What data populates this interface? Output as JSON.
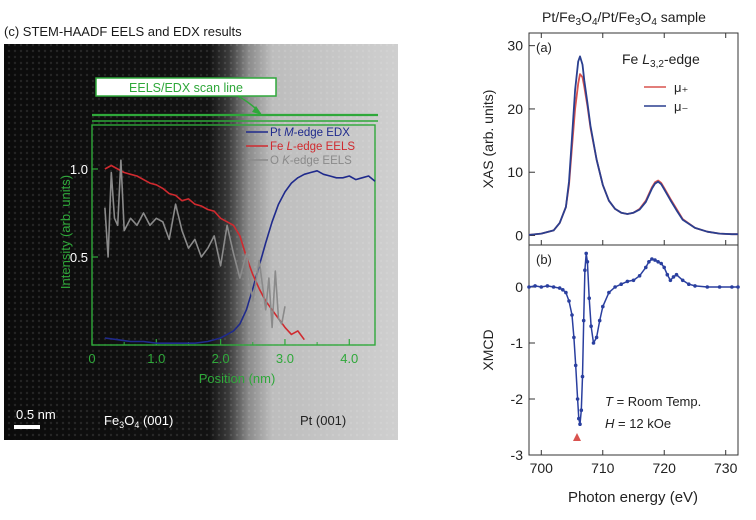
{
  "left_panel": {
    "caption": "(c) STEM-HAADF EELS and EDX results",
    "scan_label": "EELS/EDX scan line",
    "scale_bar": "0.5 nm",
    "region_left_base": "Fe",
    "region_left_sub1": "3",
    "region_left_mid": "O",
    "region_left_sub2": "4",
    "region_left_tail": " (001)",
    "region_right": "Pt (001)"
  },
  "right_panel": {
    "title_parts": [
      "Pt/Fe",
      "3",
      "O",
      "4",
      "/Pt/Fe",
      "3",
      "O",
      "4",
      " sample"
    ],
    "panel_a": "(a)",
    "panel_b": "(b)",
    "edge_label_pre": "Fe ",
    "edge_label_L": "L",
    "edge_label_sub": "3,2",
    "edge_label_post": "-edge",
    "legend_mu_plus": "μ₊",
    "legend_mu_minus": "μ₋",
    "temp_T": "T",
    "temp_rest": " = Room Temp.",
    "field_H": "H",
    "field_rest": " = 12 kOe"
  },
  "colors": {
    "green": "#2fa83a",
    "pt_blue": "#1f2a8c",
    "fe_red": "#d02a2f",
    "o_gray": "#8a8a8a",
    "xas_red": "#d9534f",
    "xas_blue": "#2a3f8f",
    "xmcd_blue": "#2a3f9f",
    "marker_red": "#d9534f"
  },
  "chart_data": [
    {
      "type": "line",
      "xlabel": "Position (nm)",
      "ylabel": "Intensity (arb. units)",
      "xlim": [
        0,
        4.4
      ],
      "ylim": [
        0,
        1.25
      ],
      "xticks": [
        "0",
        "1.0",
        "2.0",
        "3.0",
        "4.0"
      ],
      "xtick_values": [
        0,
        1,
        2,
        3,
        4
      ],
      "yticks": [
        "0.5",
        "1.0"
      ],
      "ytick_values": [
        0.5,
        1.0
      ],
      "series": [
        {
          "name": "Pt M-edge EDX",
          "name_parts": [
            "Pt ",
            "M",
            "-edge EDX"
          ],
          "color_key": "pt_blue",
          "x": [
            0.2,
            0.4,
            0.6,
            0.8,
            1.0,
            1.2,
            1.4,
            1.6,
            1.8,
            2.0,
            2.2,
            2.3,
            2.4,
            2.5,
            2.6,
            2.7,
            2.8,
            2.9,
            3.0,
            3.1,
            3.2,
            3.3,
            3.4,
            3.5,
            3.6,
            3.7,
            3.8,
            3.9,
            4.0,
            4.1,
            4.2,
            4.3,
            4.4
          ],
          "values": [
            0.04,
            0.03,
            0.02,
            0.02,
            0.01,
            0.01,
            0.01,
            0.01,
            0.02,
            0.04,
            0.08,
            0.12,
            0.2,
            0.32,
            0.45,
            0.58,
            0.7,
            0.8,
            0.87,
            0.92,
            0.95,
            0.97,
            0.98,
            0.99,
            0.97,
            0.96,
            0.95,
            0.95,
            0.96,
            0.94,
            0.95,
            0.96,
            0.93
          ]
        },
        {
          "name": "Fe L-edge EELS",
          "name_parts": [
            "Fe ",
            "L",
            "-edge EELS"
          ],
          "color_key": "fe_red",
          "x": [
            0.2,
            0.3,
            0.4,
            0.5,
            0.6,
            0.7,
            0.8,
            0.9,
            1.0,
            1.1,
            1.2,
            1.3,
            1.4,
            1.5,
            1.6,
            1.7,
            1.8,
            1.9,
            2.0,
            2.1,
            2.2,
            2.3,
            2.4,
            2.5,
            2.6,
            2.7,
            2.8,
            2.9,
            3.0,
            3.1,
            3.2,
            3.3
          ],
          "values": [
            1.0,
            1.02,
            1.0,
            0.98,
            0.97,
            0.96,
            0.94,
            0.92,
            0.91,
            0.89,
            0.86,
            0.85,
            0.82,
            0.83,
            0.8,
            0.79,
            0.77,
            0.76,
            0.72,
            0.7,
            0.68,
            0.62,
            0.5,
            0.4,
            0.32,
            0.25,
            0.2,
            0.15,
            0.1,
            0.06,
            0.08,
            0.03
          ]
        },
        {
          "name": "O K-edge EELS",
          "name_parts": [
            "O ",
            "K",
            "-edge EELS"
          ],
          "color_key": "o_gray",
          "x": [
            0.2,
            0.25,
            0.3,
            0.35,
            0.4,
            0.45,
            0.5,
            0.6,
            0.7,
            0.8,
            0.9,
            1.0,
            1.1,
            1.2,
            1.3,
            1.4,
            1.5,
            1.6,
            1.7,
            1.8,
            1.9,
            2.0,
            2.1,
            2.2,
            2.3,
            2.4,
            2.5,
            2.6,
            2.7,
            2.75,
            2.8,
            2.85,
            2.9,
            2.95,
            3.0
          ],
          "values": [
            0.78,
            0.5,
            0.98,
            0.72,
            0.68,
            1.05,
            0.65,
            0.72,
            0.68,
            0.75,
            0.68,
            0.72,
            0.7,
            0.6,
            0.8,
            0.65,
            0.55,
            0.6,
            0.5,
            0.55,
            0.62,
            0.45,
            0.68,
            0.52,
            0.38,
            0.52,
            0.25,
            0.48,
            0.2,
            0.38,
            0.1,
            0.42,
            0.15,
            0.12,
            0.22
          ]
        }
      ]
    },
    {
      "type": "line",
      "xlabel": "",
      "ylabel": "XAS (arb. units)",
      "xlim": [
        698,
        732
      ],
      "ylim": [
        -1.5,
        32
      ],
      "yticks": [
        "0",
        "10",
        "20",
        "30"
      ],
      "ytick_values": [
        0,
        10,
        20,
        30
      ],
      "series": [
        {
          "name": "μ₊",
          "color_key": "xas_red",
          "x": [
            698,
            700,
            702,
            703,
            704,
            704.5,
            705,
            705.5,
            706,
            706.3,
            706.7,
            707,
            707.5,
            708,
            709,
            710,
            711,
            712,
            713,
            714,
            715,
            716,
            717,
            718,
            718.5,
            719,
            719.5,
            720,
            721,
            722,
            723,
            725,
            727,
            729,
            731,
            732
          ],
          "values": [
            0.1,
            0.3,
            0.8,
            2.0,
            4.5,
            8,
            14,
            20,
            24,
            25.5,
            25,
            23.5,
            20.5,
            17,
            12,
            8,
            5.5,
            4.2,
            3.6,
            3.4,
            3.6,
            4.2,
            5.5,
            7.6,
            8.4,
            8.7,
            8.3,
            7.5,
            5.8,
            4.2,
            2.6,
            1.2,
            0.6,
            0.3,
            0.2,
            0.2
          ]
        },
        {
          "name": "μ₋",
          "color_key": "xas_blue",
          "x": [
            698,
            700,
            702,
            703,
            704,
            704.5,
            705,
            705.5,
            706,
            706.3,
            706.7,
            707,
            707.5,
            708,
            709,
            710,
            711,
            712,
            713,
            714,
            715,
            716,
            717,
            718,
            718.5,
            719,
            719.5,
            720,
            721,
            722,
            723,
            725,
            727,
            729,
            731,
            732
          ],
          "values": [
            0.1,
            0.3,
            0.8,
            2.0,
            4.5,
            8.5,
            15.5,
            23,
            27.5,
            28.3,
            27,
            24.5,
            21,
            17.3,
            12,
            8,
            5.5,
            4.2,
            3.6,
            3.4,
            3.6,
            4.1,
            5.3,
            7.4,
            8.2,
            8.5,
            8.1,
            7.3,
            5.6,
            4.0,
            2.5,
            1.2,
            0.6,
            0.3,
            0.2,
            0.2
          ]
        }
      ]
    },
    {
      "type": "line",
      "xlabel": "Photon energy (eV)",
      "ylabel": "XMCD",
      "xlim": [
        698,
        732
      ],
      "ylim": [
        -3,
        0.75
      ],
      "xticks": [
        "700",
        "710",
        "720",
        "730"
      ],
      "xtick_values": [
        700,
        710,
        720,
        730
      ],
      "yticks": [
        "-3",
        "-2",
        "-1",
        "0"
      ],
      "ytick_values": [
        -3,
        -2,
        -1,
        0
      ],
      "series": [
        {
          "name": "XMCD",
          "color_key": "xmcd_blue",
          "x": [
            698,
            699,
            700,
            701,
            702,
            703,
            703.5,
            704,
            704.5,
            705,
            705.3,
            705.6,
            705.9,
            706.1,
            706.3,
            706.5,
            706.7,
            706.9,
            707.1,
            707.3,
            707.5,
            707.8,
            708.1,
            708.5,
            709,
            709.5,
            710,
            711,
            712,
            713,
            714,
            715,
            716,
            717,
            717.5,
            718,
            718.5,
            719,
            719.5,
            720,
            720.5,
            721,
            721.5,
            722,
            723,
            724,
            725,
            727,
            729,
            731,
            732
          ],
          "values": [
            0.0,
            0.02,
            0.0,
            0.02,
            0.0,
            -0.02,
            -0.05,
            -0.1,
            -0.25,
            -0.5,
            -0.9,
            -1.4,
            -2.0,
            -2.35,
            -2.45,
            -2.2,
            -1.6,
            -0.6,
            0.3,
            0.6,
            0.45,
            -0.2,
            -0.7,
            -1.0,
            -0.9,
            -0.6,
            -0.35,
            -0.1,
            0.0,
            0.05,
            0.1,
            0.12,
            0.2,
            0.35,
            0.45,
            0.5,
            0.48,
            0.45,
            0.42,
            0.35,
            0.22,
            0.12,
            0.18,
            0.22,
            0.12,
            0.05,
            0.02,
            0.0,
            0.0,
            0.0,
            0.0
          ]
        }
      ]
    }
  ]
}
